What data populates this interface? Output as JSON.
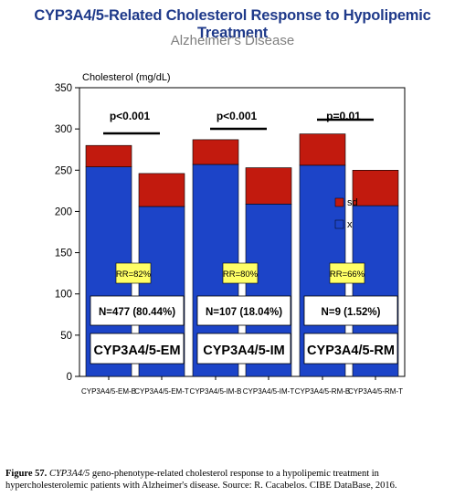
{
  "title": "CYP3A4/5-Related Cholesterol Response to Hypolipemic Treatment",
  "subtitle": "Alzheimer's Disease",
  "caption": {
    "figure_label": "Figure 57.",
    "gene": "CYP3A4/5",
    "text": " geno-phenotype-related cholesterol response to a hypolipemic treatment in hypercholesterolemic patients with Alzheimer's disease. Source: R. Cacabelos. CIBE DataBase, 2016."
  },
  "colors": {
    "mean": "#1c44c8",
    "sd": "#c21a0e",
    "title": "#1f3a8a",
    "rr_box": "#ffff66"
  },
  "chart_data": {
    "type": "bar",
    "stacked": true,
    "ylabel": "Cholesterol (mg/dL)",
    "ylim": [
      0,
      350
    ],
    "yticks": [
      0,
      50,
      100,
      150,
      200,
      250,
      300,
      350
    ],
    "categories": [
      "CYP3A4/5-EM-B",
      "CYP3A4/5-EM-T",
      "CYP3A4/5-IM-B",
      "CYP3A4/5-IM-T",
      "CYP3A4/5-RM-B",
      "CYP3A4/5-RM-T"
    ],
    "series": [
      {
        "name": "x",
        "values": [
          254,
          206,
          257,
          209,
          256,
          207
        ]
      },
      {
        "name": "sd",
        "values": [
          26,
          40,
          30,
          44,
          38,
          43
        ]
      }
    ],
    "legend": {
      "position": "right",
      "entries": [
        "sd",
        "x"
      ]
    },
    "groups": [
      {
        "label": "CYP3A4/5-EM",
        "n": "N=477 (80.44%)",
        "rr": "RR=82%",
        "p": "p<0.001"
      },
      {
        "label": "CYP3A4/5-IM",
        "n": "N=107 (18.04%)",
        "rr": "RR=80%",
        "p": "p<0.001"
      },
      {
        "label": "CYP3A4/5-RM",
        "n": "N=9 (1.52%)",
        "rr": "RR=66%",
        "p": "p=0.01"
      }
    ]
  }
}
